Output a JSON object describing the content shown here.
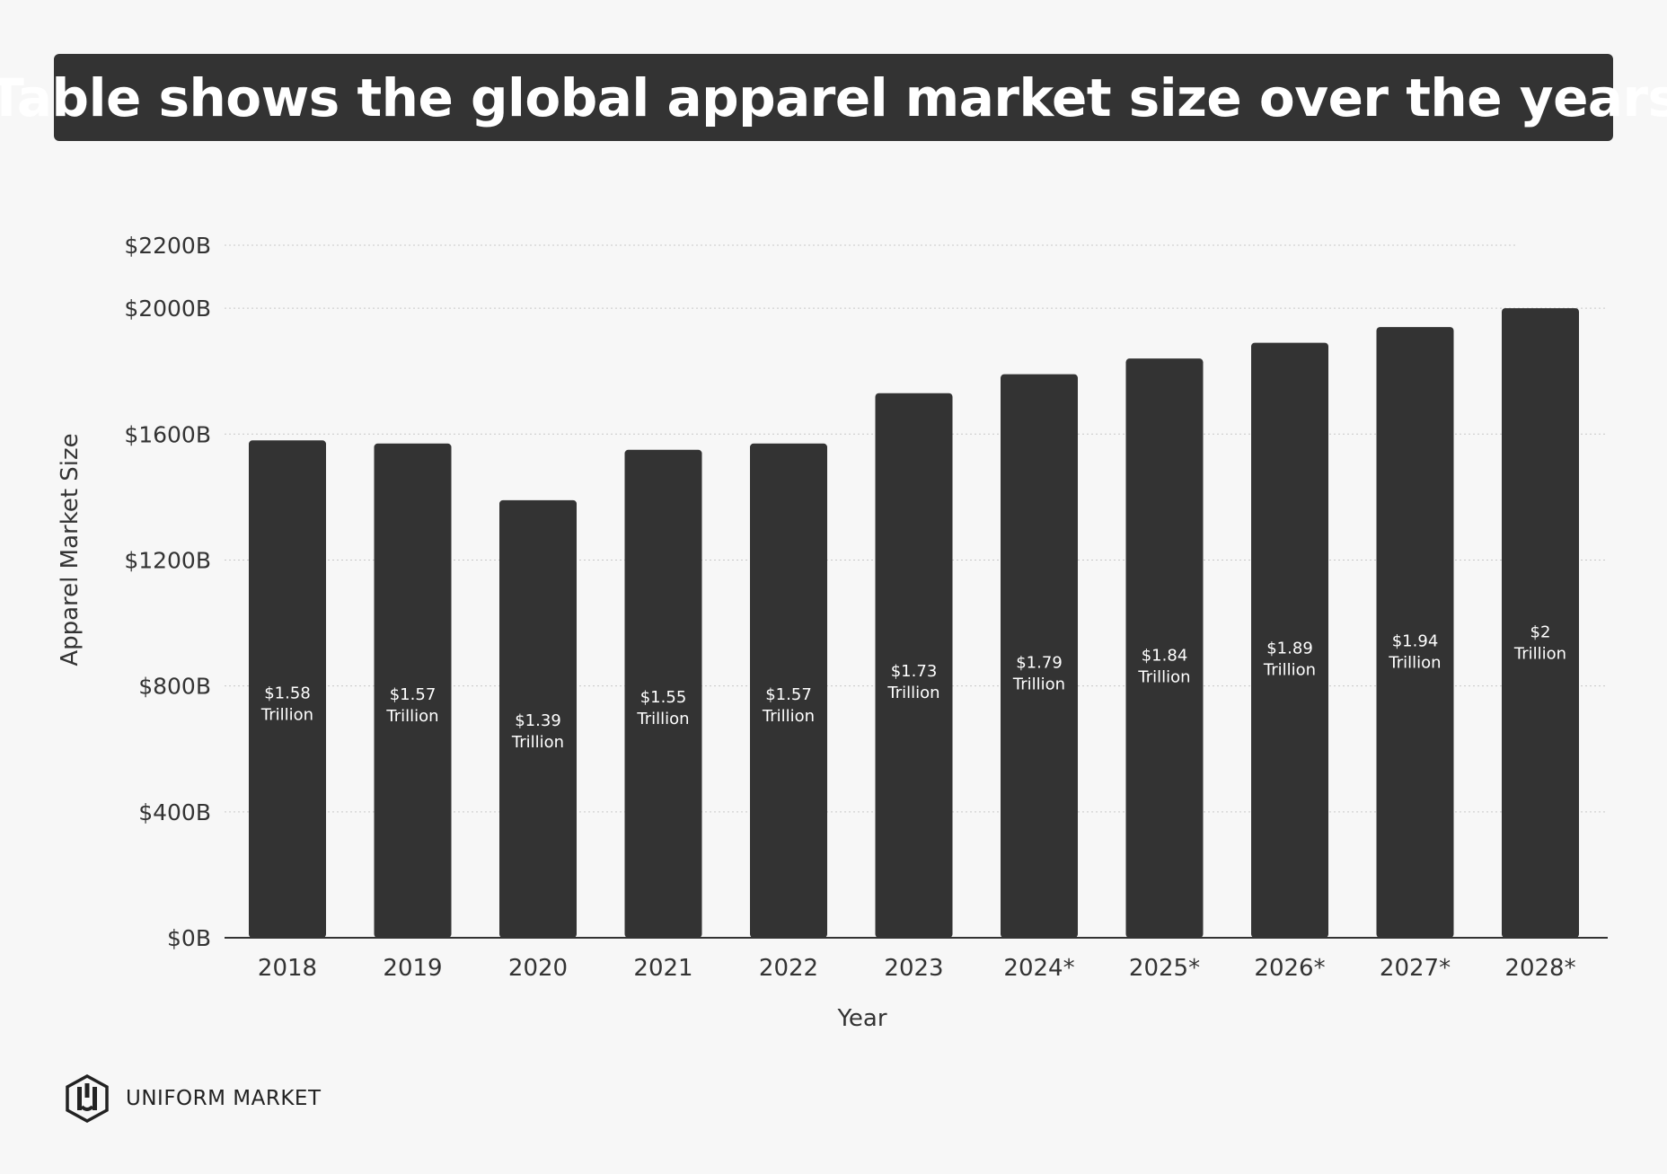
{
  "title": "Table shows the global apparel market size over the years",
  "brand": {
    "name": "UNIFORM MARKET"
  },
  "colors": {
    "bar": "#333333",
    "background": "#f7f7f7",
    "grid": "#c8c8c8",
    "text": "#333333"
  },
  "chart_data": {
    "type": "bar",
    "xlabel": "Year",
    "ylabel": "Apparel Market Size",
    "ylim": [
      0,
      2200
    ],
    "yticks": [
      0,
      400,
      800,
      1200,
      1600,
      2000,
      2200
    ],
    "ytick_labels": [
      "$0B",
      "$400B",
      "$800B",
      "$1200B",
      "$1600B",
      "$2000B",
      "$2200B"
    ],
    "grid": true,
    "categories": [
      "2018",
      "2019",
      "2020",
      "2021",
      "2022",
      "2023",
      "2024*",
      "2025*",
      "2026*",
      "2027*",
      "2028*"
    ],
    "values": [
      1580,
      1570,
      1390,
      1550,
      1570,
      1730,
      1790,
      1840,
      1890,
      1940,
      2000
    ],
    "data_labels": [
      [
        "$1.58",
        "Trillion"
      ],
      [
        "$1.57",
        "Trillion"
      ],
      [
        "$1.39",
        "Trillion"
      ],
      [
        "$1.55",
        "Trillion"
      ],
      [
        "$1.57",
        "Trillion"
      ],
      [
        "$1.73",
        "Trillion"
      ],
      [
        "$1.79",
        "Trillion"
      ],
      [
        "$1.84",
        "Trillion"
      ],
      [
        "$1.89",
        "Trillion"
      ],
      [
        "$1.94",
        "Trillion"
      ],
      [
        "$2",
        "Trillion"
      ]
    ]
  }
}
